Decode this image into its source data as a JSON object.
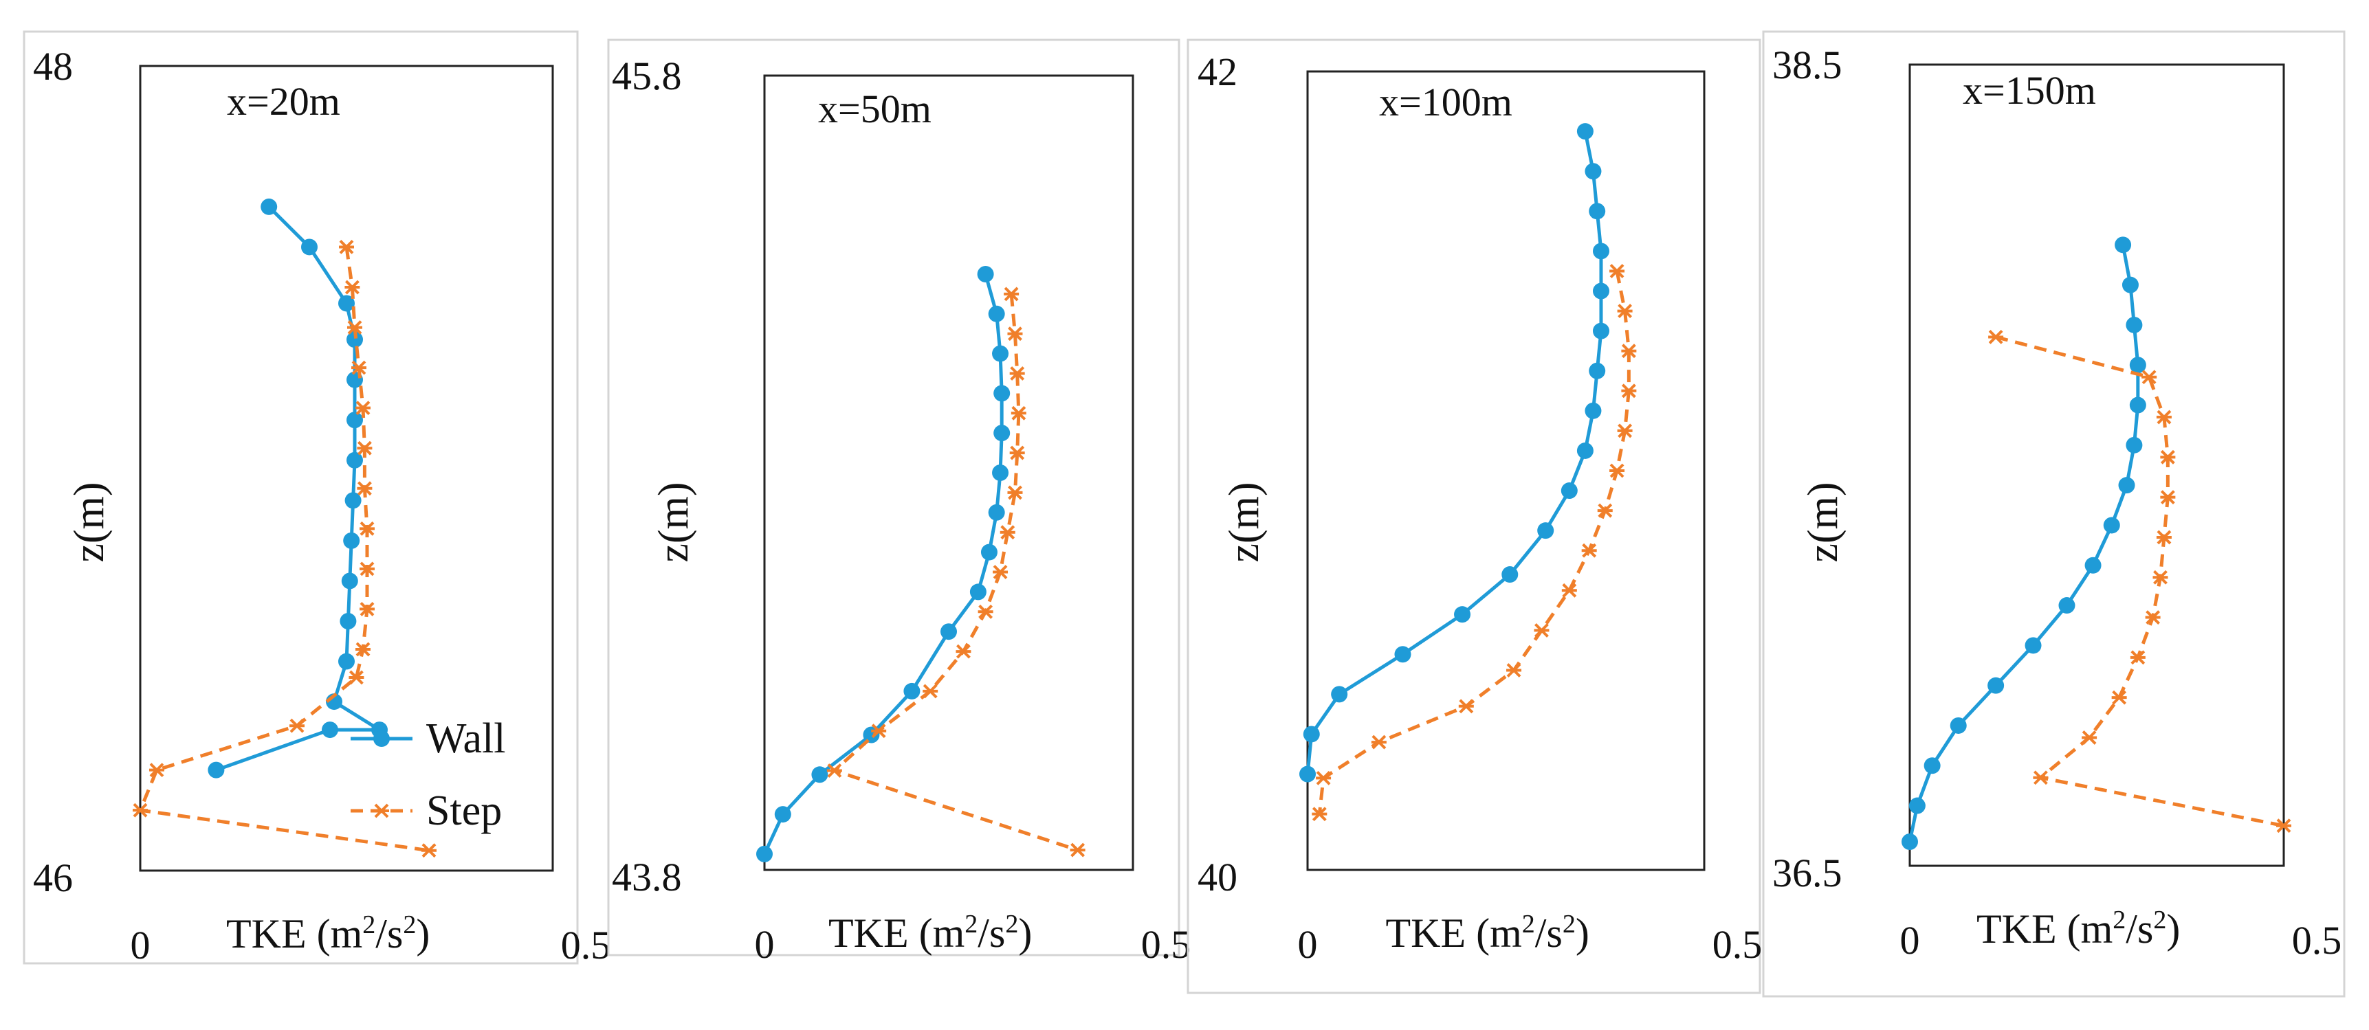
{
  "colors": {
    "wall": "#1f9bd7",
    "step": "#f07f2a",
    "frame": "#222222",
    "panel_border": "#d4d4d4"
  },
  "legend": {
    "wall": "Wall",
    "step": "Step"
  },
  "chart_data": [
    {
      "type": "line",
      "title": "x=20m",
      "xlabel": "TKE (m²/s²)",
      "ylabel": "z(m)",
      "xlim": [
        0,
        0.5
      ],
      "ylim": [
        46,
        48
      ],
      "x_tick_labels": [
        "0",
        "0.5"
      ],
      "y_tick_labels": [
        "46",
        "48"
      ],
      "legend": "inside-right",
      "series": [
        {
          "name": "Wall",
          "points": [
            [
              0.156,
              47.65
            ],
            [
              0.205,
              47.55
            ],
            [
              0.25,
              47.41
            ],
            [
              0.26,
              47.32
            ],
            [
              0.26,
              47.22
            ],
            [
              0.26,
              47.12
            ],
            [
              0.26,
              47.02
            ],
            [
              0.258,
              46.92
            ],
            [
              0.256,
              46.82
            ],
            [
              0.254,
              46.72
            ],
            [
              0.252,
              46.62
            ],
            [
              0.25,
              46.52
            ],
            [
              0.235,
              46.42
            ],
            [
              0.29,
              46.35
            ],
            [
              0.23,
              46.35
            ],
            [
              0.092,
              46.25
            ]
          ]
        },
        {
          "name": "Step",
          "points": [
            [
              0.25,
              47.55
            ],
            [
              0.257,
              47.45
            ],
            [
              0.26,
              47.35
            ],
            [
              0.265,
              47.25
            ],
            [
              0.27,
              47.15
            ],
            [
              0.272,
              47.05
            ],
            [
              0.272,
              46.95
            ],
            [
              0.275,
              46.85
            ],
            [
              0.275,
              46.75
            ],
            [
              0.275,
              46.65
            ],
            [
              0.27,
              46.55
            ],
            [
              0.262,
              46.48
            ],
            [
              0.19,
              46.36
            ],
            [
              0.02,
              46.25
            ],
            [
              0.0,
              46.15
            ],
            [
              0.35,
              46.05
            ]
          ]
        }
      ]
    },
    {
      "type": "line",
      "title": "x=50m",
      "xlabel": "TKE (m²/s²)",
      "ylabel": "z(m)",
      "xlim": [
        0,
        0.5
      ],
      "ylim": [
        43.8,
        45.8
      ],
      "x_tick_labels": [
        "0",
        "0.5"
      ],
      "y_tick_labels": [
        "43.8",
        "45.8"
      ],
      "series": [
        {
          "name": "Wall",
          "points": [
            [
              0.3,
              45.3
            ],
            [
              0.315,
              45.2
            ],
            [
              0.32,
              45.1
            ],
            [
              0.322,
              45.0
            ],
            [
              0.322,
              44.9
            ],
            [
              0.32,
              44.8
            ],
            [
              0.315,
              44.7
            ],
            [
              0.305,
              44.6
            ],
            [
              0.29,
              44.5
            ],
            [
              0.25,
              44.4
            ],
            [
              0.2,
              44.25
            ],
            [
              0.145,
              44.14
            ],
            [
              0.075,
              44.04
            ],
            [
              0.025,
              43.94
            ],
            [
              0.0,
              43.84
            ]
          ]
        },
        {
          "name": "Step",
          "points": [
            [
              0.335,
              45.25
            ],
            [
              0.34,
              45.15
            ],
            [
              0.343,
              45.05
            ],
            [
              0.345,
              44.95
            ],
            [
              0.343,
              44.85
            ],
            [
              0.34,
              44.75
            ],
            [
              0.33,
              44.65
            ],
            [
              0.32,
              44.55
            ],
            [
              0.3,
              44.45
            ],
            [
              0.27,
              44.35
            ],
            [
              0.225,
              44.25
            ],
            [
              0.155,
              44.15
            ],
            [
              0.095,
              44.05
            ],
            [
              0.425,
              43.85
            ]
          ]
        }
      ]
    },
    {
      "type": "line",
      "title": "x=100m",
      "xlabel": "TKE (m²/s²)",
      "ylabel": "z(m)",
      "xlim": [
        0,
        0.5
      ],
      "ylim": [
        40,
        42
      ],
      "x_tick_labels": [
        "0",
        "0.5"
      ],
      "y_tick_labels": [
        "40",
        "42"
      ],
      "series": [
        {
          "name": "Wall",
          "points": [
            [
              0.35,
              41.85
            ],
            [
              0.36,
              41.75
            ],
            [
              0.365,
              41.65
            ],
            [
              0.37,
              41.55
            ],
            [
              0.37,
              41.45
            ],
            [
              0.37,
              41.35
            ],
            [
              0.365,
              41.25
            ],
            [
              0.36,
              41.15
            ],
            [
              0.35,
              41.05
            ],
            [
              0.33,
              40.95
            ],
            [
              0.3,
              40.85
            ],
            [
              0.255,
              40.74
            ],
            [
              0.195,
              40.64
            ],
            [
              0.12,
              40.54
            ],
            [
              0.04,
              40.44
            ],
            [
              0.005,
              40.34
            ],
            [
              0.0,
              40.24
            ]
          ]
        },
        {
          "name": "Step",
          "points": [
            [
              0.39,
              41.5
            ],
            [
              0.4,
              41.4
            ],
            [
              0.405,
              41.3
            ],
            [
              0.405,
              41.2
            ],
            [
              0.4,
              41.1
            ],
            [
              0.39,
              41.0
            ],
            [
              0.375,
              40.9
            ],
            [
              0.355,
              40.8
            ],
            [
              0.33,
              40.7
            ],
            [
              0.295,
              40.6
            ],
            [
              0.26,
              40.5
            ],
            [
              0.2,
              40.41
            ],
            [
              0.09,
              40.32
            ],
            [
              0.02,
              40.23
            ],
            [
              0.015,
              40.14
            ]
          ]
        }
      ]
    },
    {
      "type": "line",
      "title": "x=150m",
      "xlabel": "TKE (m²/s²)",
      "ylabel": "z(m)",
      "xlim": [
        0,
        0.5
      ],
      "ylim": [
        36.5,
        38.5
      ],
      "x_tick_labels": [
        "0",
        "0.5"
      ],
      "y_tick_labels": [
        "36.5",
        "38.5"
      ],
      "series": [
        {
          "name": "Wall",
          "points": [
            [
              0.285,
              38.05
            ],
            [
              0.295,
              37.95
            ],
            [
              0.3,
              37.85
            ],
            [
              0.305,
              37.75
            ],
            [
              0.305,
              37.65
            ],
            [
              0.3,
              37.55
            ],
            [
              0.29,
              37.45
            ],
            [
              0.27,
              37.35
            ],
            [
              0.245,
              37.25
            ],
            [
              0.21,
              37.15
            ],
            [
              0.165,
              37.05
            ],
            [
              0.115,
              36.95
            ],
            [
              0.065,
              36.85
            ],
            [
              0.03,
              36.75
            ],
            [
              0.01,
              36.65
            ],
            [
              0.0,
              36.56
            ]
          ]
        },
        {
          "name": "Step",
          "points": [
            [
              0.115,
              37.82
            ],
            [
              0.32,
              37.72
            ],
            [
              0.34,
              37.62
            ],
            [
              0.345,
              37.52
            ],
            [
              0.345,
              37.42
            ],
            [
              0.34,
              37.32
            ],
            [
              0.335,
              37.22
            ],
            [
              0.325,
              37.12
            ],
            [
              0.305,
              37.02
            ],
            [
              0.28,
              36.92
            ],
            [
              0.24,
              36.82
            ],
            [
              0.175,
              36.72
            ],
            [
              0.5,
              36.6
            ]
          ]
        }
      ]
    }
  ]
}
